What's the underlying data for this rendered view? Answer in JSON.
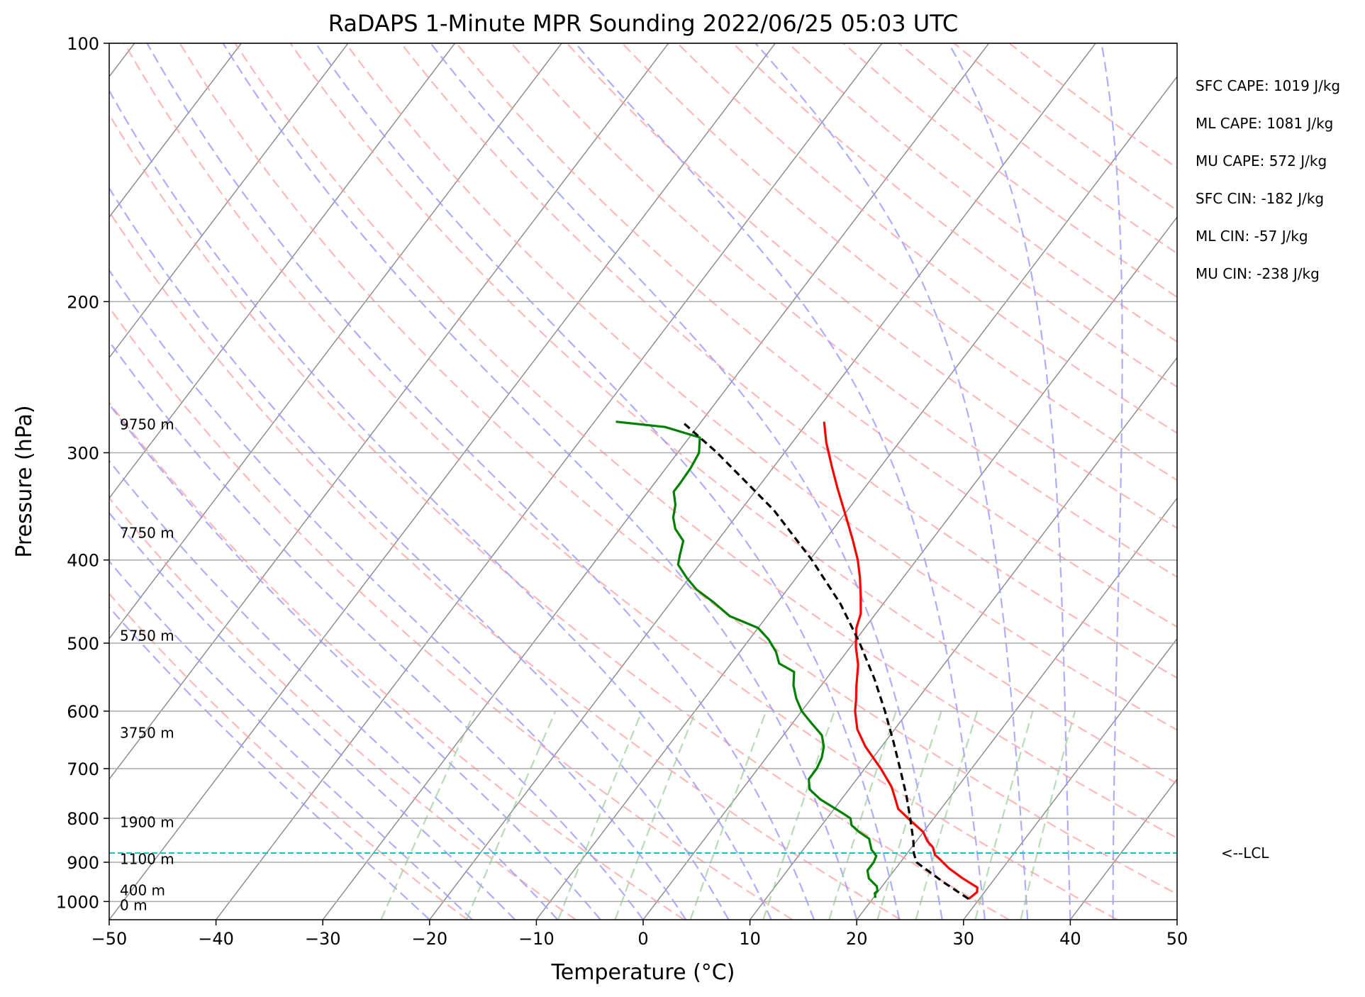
{
  "chart_data": {
    "type": "line",
    "diagram": "skew-T log-P",
    "title": "RaDAPS 1-Minute MPR Sounding 2022/06/25 05:03 UTC",
    "xlabel": "Temperature (°C)",
    "ylabel": "Pressure (hPa)",
    "xlim": [
      -50,
      50
    ],
    "ylim": [
      1050,
      100
    ],
    "y_scale": "log",
    "x_ticks": [
      -50,
      -40,
      -30,
      -20,
      -10,
      0,
      10,
      20,
      30,
      40,
      50
    ],
    "x_tick_labels": [
      "−50",
      "−40",
      "−30",
      "−20",
      "−10",
      "0",
      "10",
      "20",
      "30",
      "40",
      "50"
    ],
    "y_ticks": [
      100,
      200,
      300,
      400,
      500,
      600,
      700,
      800,
      900,
      1000
    ],
    "y_tick_labels": [
      "100",
      "200",
      "300",
      "400",
      "500",
      "600",
      "700",
      "800",
      "900",
      "1000"
    ],
    "grid": true,
    "height_labels": [
      {
        "text": "0 m",
        "p": 1010
      },
      {
        "text": "400 m",
        "p": 970
      },
      {
        "text": "1100 m",
        "p": 892
      },
      {
        "text": "1900 m",
        "p": 808
      },
      {
        "text": "3750 m",
        "p": 636
      },
      {
        "text": "5750 m",
        "p": 490
      },
      {
        "text": "7750 m",
        "p": 372
      },
      {
        "text": "9750 m",
        "p": 278
      }
    ],
    "lcl": {
      "p": 878,
      "label": "<--LCL",
      "color": "#17becf"
    },
    "indices": [
      "SFC CAPE: 1019 J/kg",
      "ML CAPE: 1081 J/kg",
      "MU CAPE: 572 J/kg",
      "SFC CIN: -182 J/kg",
      "ML CIN: -57 J/kg",
      "MU CIN: -238 J/kg"
    ],
    "series": [
      {
        "kind": "temperature",
        "color": "#ff0000",
        "p": [
          993,
          975,
          963,
          940,
          915,
          893,
          882,
          865,
          850,
          830,
          805,
          780,
          755,
          735,
          700,
          660,
          630,
          600,
          580,
          560,
          530,
          505,
          480,
          462,
          440,
          420,
          400,
          378,
          355,
          330,
          312,
          292,
          276
        ],
        "t": [
          29.0,
          29.3,
          29.0,
          27.0,
          25.0,
          23.5,
          22.7,
          22.0,
          21.0,
          20.0,
          18.0,
          16.0,
          14.8,
          13.8,
          11.5,
          8.5,
          6.5,
          5.0,
          4.2,
          3.3,
          2.0,
          0.5,
          -0.8,
          -1.4,
          -2.7,
          -4.0,
          -5.5,
          -7.5,
          -9.8,
          -12.5,
          -14.5,
          -16.8,
          -18.5
        ]
      },
      {
        "kind": "dewpoint",
        "color": "#008000",
        "p": [
          990,
          978,
          972,
          960,
          940,
          920,
          900,
          885,
          870,
          855,
          845,
          830,
          815,
          800,
          790,
          760,
          740,
          720,
          700,
          680,
          660,
          640,
          620,
          600,
          580,
          560,
          540,
          528,
          512,
          495,
          480,
          465,
          448,
          433,
          420,
          405,
          395,
          380,
          368,
          357,
          345,
          333,
          325,
          312,
          300,
          288,
          280,
          276
        ],
        "t": [
          20.2,
          19.8,
          19.9,
          19.5,
          18.2,
          17.5,
          17.5,
          17.3,
          16.4,
          15.8,
          15.4,
          14.0,
          12.8,
          12.2,
          11.2,
          8.0,
          6.3,
          5.5,
          5.5,
          5.2,
          4.6,
          3.6,
          1.8,
          0.0,
          -1.4,
          -2.6,
          -3.5,
          -5.5,
          -6.6,
          -8.2,
          -10.0,
          -13.5,
          -16.0,
          -18.5,
          -20.2,
          -22.0,
          -22.5,
          -23.2,
          -24.8,
          -25.8,
          -26.5,
          -27.6,
          -27.6,
          -27.7,
          -28.0,
          -29.0,
          -33.0,
          -38.0
        ]
      },
      {
        "kind": "parcel",
        "color": "#000000",
        "dashed": true,
        "p": [
          993,
          950,
          900,
          878,
          850,
          800,
          750,
          700,
          650,
          600,
          550,
          500,
          450,
          400,
          350,
          300,
          276
        ],
        "t": [
          29.0,
          25.5,
          21.5,
          20.6,
          19.7,
          17.8,
          15.7,
          13.3,
          10.7,
          7.8,
          4.5,
          0.6,
          -4.0,
          -9.8,
          -16.9,
          -26.3,
          -31.8
        ]
      }
    ],
    "background_lines": {
      "dry_adiabats_color": "#ff9999",
      "moist_adiabats_color": "#9999ff",
      "mixing_ratio_color": "#99cc99",
      "isotherm_color": "#888888"
    }
  }
}
